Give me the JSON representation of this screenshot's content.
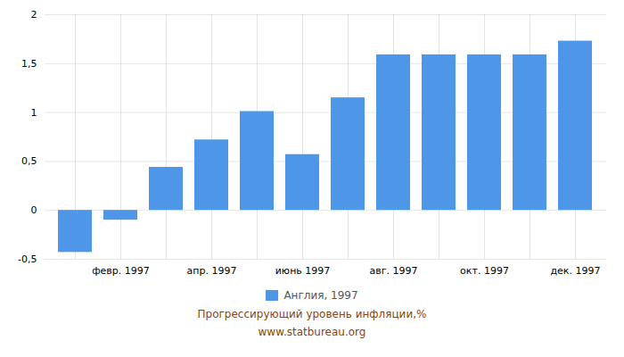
{
  "chart_data": {
    "type": "bar",
    "title": "Прогрессирующий уровень инфляции,%",
    "subtitle": "www.statbureau.org",
    "categories": [
      null,
      "февр. 1997",
      null,
      "апр. 1997",
      null,
      "июнь 1997",
      null,
      "авг. 1997",
      null,
      "окт. 1997",
      null,
      "дек. 1997"
    ],
    "series": [
      {
        "name": "Англия, 1997",
        "color": "#4d96e8",
        "values": [
          -0.43,
          -0.1,
          0.44,
          0.72,
          1.01,
          0.57,
          1.15,
          1.59,
          1.59,
          1.59,
          1.59,
          1.73
        ]
      }
    ],
    "ylim": [
      -0.5,
      2.0
    ],
    "yticks": [
      {
        "value": -0.5,
        "label": "-0,5"
      },
      0,
      {
        "value": 0.5,
        "label": "0,5"
      },
      1,
      {
        "value": 1.5,
        "label": "1,5"
      },
      2
    ],
    "grid": true,
    "legend": "bottom"
  }
}
